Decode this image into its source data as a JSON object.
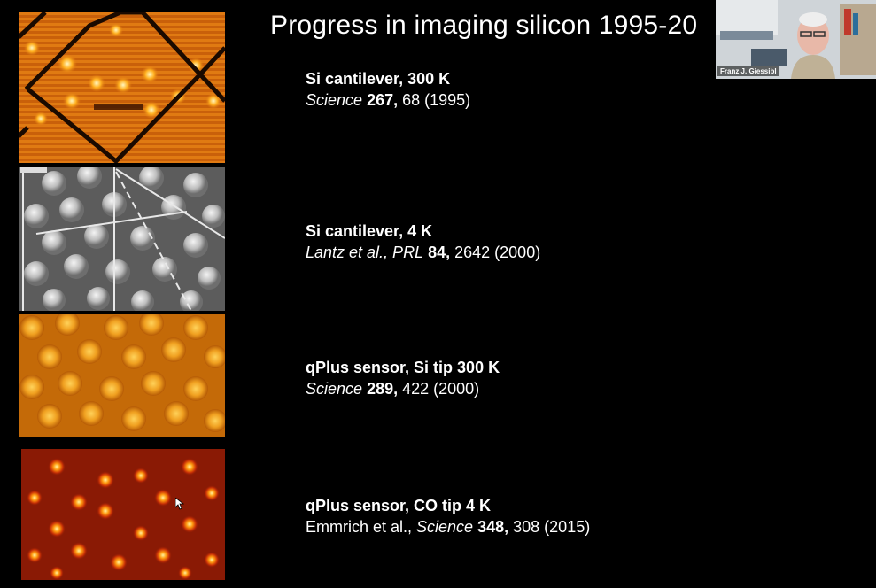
{
  "slide": {
    "title": "Progress in imaging silicon 1995-20",
    "entries": [
      {
        "heading": "Si cantilever, 300 K",
        "journal": "Science",
        "volume": "267,",
        "pages": " 68 (1995)"
      },
      {
        "heading": "Si cantilever, 4 K",
        "authors": "Lantz et al., PRL",
        "volume": "84,",
        "pages": " 2642 (2000)"
      },
      {
        "heading": "qPlus sensor, Si tip 300 K",
        "journal": "Science",
        "volume": "289,",
        "pages": " 422 (2000)"
      },
      {
        "heading": "qPlus sensor, CO tip 4 K",
        "authors": "Emmrich et al., ",
        "journal": "Science",
        "volume": "348,",
        "pages": " 308 (2015)"
      }
    ]
  },
  "video": {
    "participant_name": "Franz J. Giessibl"
  },
  "colors": {
    "background": "#000000",
    "text": "#ffffff",
    "panel1": "#e07a12",
    "panel2": "#9a9a9a",
    "panel3": "#e08a10",
    "panel4": "#8a1a05"
  },
  "icons": [
    "mouse-cursor-icon"
  ]
}
